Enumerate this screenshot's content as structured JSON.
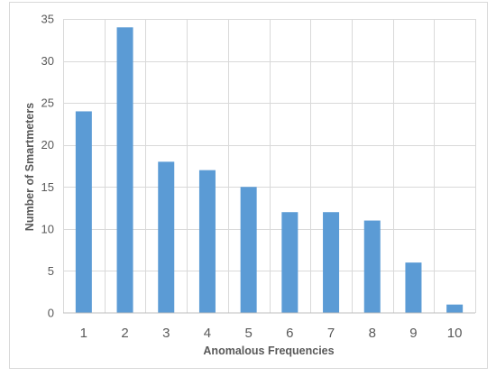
{
  "chart_data": {
    "type": "bar",
    "categories": [
      "1",
      "2",
      "3",
      "4",
      "5",
      "6",
      "7",
      "8",
      "9",
      "10"
    ],
    "values": [
      24,
      34,
      18,
      17,
      15,
      12,
      12,
      11,
      6,
      1
    ],
    "xlabel": "Anomalous Frequencies",
    "ylabel": "Number of Smartmeters",
    "ylim": [
      0,
      35
    ],
    "yticks": [
      0,
      5,
      10,
      15,
      20,
      25,
      30,
      35
    ],
    "grid": true,
    "bar_color": "#5b9bd5"
  }
}
